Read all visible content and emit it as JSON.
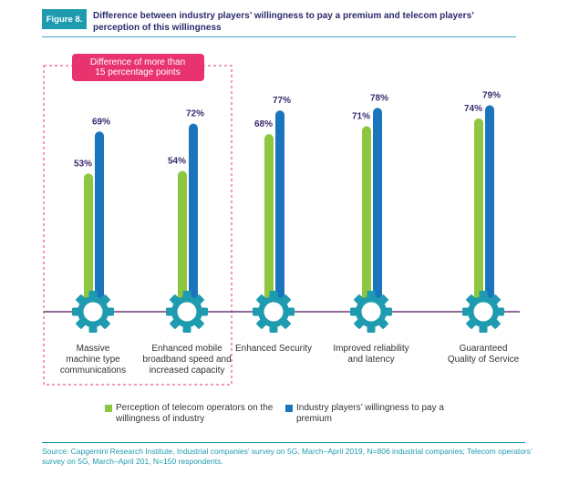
{
  "figure": {
    "badge": "Figure 8.",
    "title": "Difference between industry players’ willingness to pay a premium and telecom players’ perception of this willingness"
  },
  "highlight": {
    "label": "Difference of more than 15 percentage points"
  },
  "chart_data": {
    "type": "bar",
    "title": "Difference between industry players’ willingness to pay a premium and telecom players’ perception of this willingness",
    "categories": [
      "Massive machine type communications",
      "Enhanced mobile broadband speed and increased capacity",
      "Enhanced Security",
      "Improved reliability and latency",
      "Guaranteed Quality of Service"
    ],
    "series": [
      {
        "name": "Perception of telecom operators on the willingness of industry",
        "color": "#8dc63f",
        "values": [
          53,
          54,
          68,
          71,
          74
        ]
      },
      {
        "name": "Industry players’ willingness to pay a premium",
        "color": "#1b75bc",
        "values": [
          69,
          72,
          77,
          78,
          79
        ]
      }
    ],
    "value_suffix": "%",
    "ylim": [
      0,
      100
    ],
    "xlabel": "",
    "ylabel": ""
  },
  "colors": {
    "gear": "#1f9bb0",
    "baseline": "#6b3a78",
    "highlight": "#e8336e",
    "label": "#3b2a6e"
  },
  "source": "Source: Capgemini Research Institute, Industrial companies’ survey on 5G, March–April 2019, N=806 industrial companies; Telecom operators’ survey on 5G, March–April 201, N=150 respondents."
}
